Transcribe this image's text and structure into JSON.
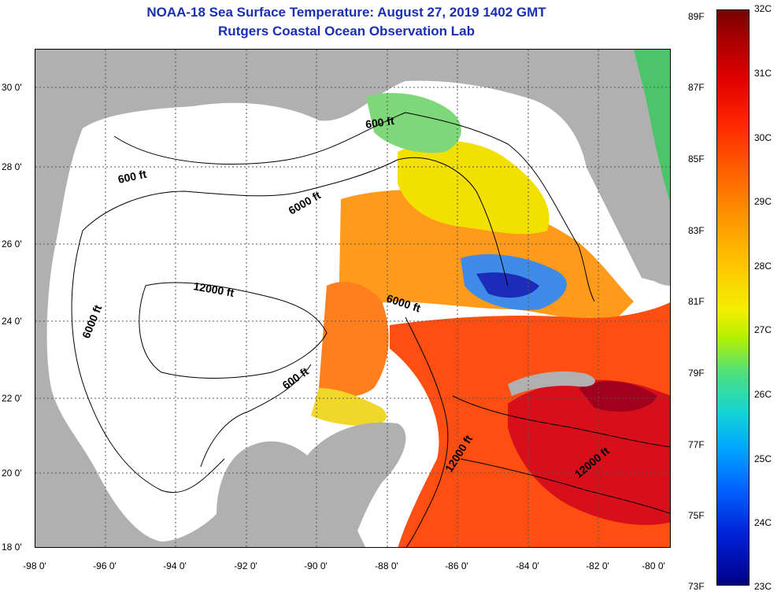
{
  "title": {
    "line1": "NOAA-18 Sea Surface Temperature:  August 27, 2019 1402 GMT",
    "line2": "Rutgers Coastal Ocean Observation Lab"
  },
  "map": {
    "lat_ticks": [
      "30 0'",
      "28 0'",
      "26 0'",
      "24 0'",
      "22 0'",
      "20 0'",
      "18 0'"
    ],
    "lon_ticks": [
      "-98 0'",
      "-96 0'",
      "-94 0'",
      "-92 0'",
      "-90 0'",
      "-88 0'",
      "-86 0'",
      "-84 0'",
      "-82 0'",
      "-80 0'"
    ],
    "contour_labels": [
      {
        "text": "600 ft",
        "angle": -12
      },
      {
        "text": "600 ft",
        "angle": -8
      },
      {
        "text": "6000 ft",
        "angle": -30
      },
      {
        "text": "12000 ft",
        "angle": 10
      },
      {
        "text": "6000 ft",
        "angle": -68
      },
      {
        "text": "6000 ft",
        "angle": 18
      },
      {
        "text": "600 ft",
        "angle": -35
      },
      {
        "text": "12000 ft",
        "angle": -58
      },
      {
        "text": "12000 ft",
        "angle": -40
      }
    ],
    "colors": {
      "land": "#b0b0b0",
      "cloud_or_no_data": "#ffffff",
      "grid": "#555555",
      "contour": "#000000"
    }
  },
  "colorbar": {
    "fahrenheit_labels": [
      "89F",
      "87F",
      "85F",
      "83F",
      "81F",
      "79F",
      "77F",
      "75F",
      "73F"
    ],
    "celsius_labels": [
      "32C",
      "31C",
      "30C",
      "29C",
      "28C",
      "27C",
      "26C",
      "25C",
      "24C",
      "23C"
    ]
  }
}
